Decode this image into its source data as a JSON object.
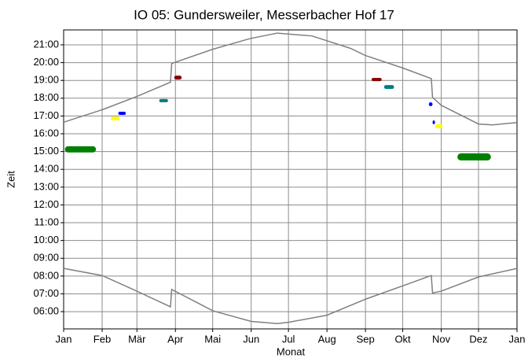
{
  "chart_data": {
    "type": "line",
    "title": "IO 05: Gundersweiler, Messerbacher Hof 17",
    "xlabel": "Monat",
    "ylabel": "Zeit",
    "xlim": [
      0,
      365
    ],
    "ylim": [
      5.03,
      21.84
    ],
    "xticks": [
      {
        "value": 0,
        "label": "Jan"
      },
      {
        "value": 31,
        "label": "Feb"
      },
      {
        "value": 59,
        "label": "Mär"
      },
      {
        "value": 90,
        "label": "Apr"
      },
      {
        "value": 120,
        "label": "Mai"
      },
      {
        "value": 151,
        "label": "Jun"
      },
      {
        "value": 181,
        "label": "Jul"
      },
      {
        "value": 212,
        "label": "Aug"
      },
      {
        "value": 243,
        "label": "Sep"
      },
      {
        "value": 273,
        "label": "Okt"
      },
      {
        "value": 304,
        "label": "Nov"
      },
      {
        "value": 334,
        "label": "Dez"
      },
      {
        "value": 365,
        "label": "Jan"
      }
    ],
    "yticks": [
      {
        "value": 6,
        "label": "06:00"
      },
      {
        "value": 7,
        "label": "07:00"
      },
      {
        "value": 8,
        "label": "08:00"
      },
      {
        "value": 9,
        "label": "09:00"
      },
      {
        "value": 10,
        "label": "10:00"
      },
      {
        "value": 11,
        "label": "11:00"
      },
      {
        "value": 12,
        "label": "12:00"
      },
      {
        "value": 13,
        "label": "13:00"
      },
      {
        "value": 14,
        "label": "14:00"
      },
      {
        "value": 15,
        "label": "15:00"
      },
      {
        "value": 16,
        "label": "16:00"
      },
      {
        "value": 17,
        "label": "17:00"
      },
      {
        "value": 18,
        "label": "18:00"
      },
      {
        "value": 19,
        "label": "19:00"
      },
      {
        "value": 20,
        "label": "20:00"
      },
      {
        "value": 21,
        "label": "21:00"
      }
    ],
    "grid": true,
    "series": [
      {
        "color": "#808080",
        "x": [
          0,
          31,
          59,
          86,
          87,
          120,
          150,
          172,
          200,
          231,
          243,
          273,
          296,
          297,
          304,
          334,
          345,
          365
        ],
        "values": [
          16.65,
          17.35,
          18.1,
          18.9,
          19.95,
          20.75,
          21.35,
          21.66,
          21.5,
          20.8,
          20.4,
          19.7,
          19.1,
          18.05,
          17.6,
          16.55,
          16.5,
          16.63
        ]
      },
      {
        "color": "#808080",
        "x": [
          0,
          31,
          59,
          86,
          87,
          120,
          151,
          172,
          181,
          212,
          243,
          273,
          296,
          297,
          304,
          334,
          365
        ],
        "values": [
          8.43,
          8.03,
          7.15,
          6.27,
          7.25,
          6.05,
          5.45,
          5.33,
          5.4,
          5.8,
          6.7,
          7.45,
          8.03,
          7.05,
          7.15,
          7.95,
          8.43
        ]
      }
    ],
    "patches": [
      {
        "color": "#008000",
        "x0": 1,
        "x1": 26,
        "y0": 14.95,
        "y1": 15.3
      },
      {
        "color": "#ffff00",
        "x0": 38,
        "x1": 45,
        "y0": 16.75,
        "y1": 16.97
      },
      {
        "color": "#0000ff",
        "x0": 44,
        "x1": 50,
        "y0": 17.06,
        "y1": 17.24
      },
      {
        "color": "#008080",
        "x0": 77,
        "x1": 84,
        "y0": 17.77,
        "y1": 17.95
      },
      {
        "color": "#8b0000",
        "x0": 89,
        "x1": 95,
        "y0": 19.05,
        "y1": 19.27
      },
      {
        "color": "#8b0000",
        "x0": 248,
        "x1": 256,
        "y0": 18.96,
        "y1": 19.14
      },
      {
        "color": "#008080",
        "x0": 258,
        "x1": 266,
        "y0": 18.52,
        "y1": 18.74
      },
      {
        "color": "#0000ff",
        "x0": 294,
        "x1": 297,
        "y0": 17.55,
        "y1": 17.77
      },
      {
        "color": "#0000ff",
        "x0": 297,
        "x1": 299,
        "y0": 16.53,
        "y1": 16.75
      },
      {
        "color": "#ffff00",
        "x0": 299,
        "x1": 305,
        "y0": 16.31,
        "y1": 16.53
      },
      {
        "color": "#008000",
        "x0": 317,
        "x1": 344,
        "y0": 14.5,
        "y1": 14.9
      }
    ]
  }
}
